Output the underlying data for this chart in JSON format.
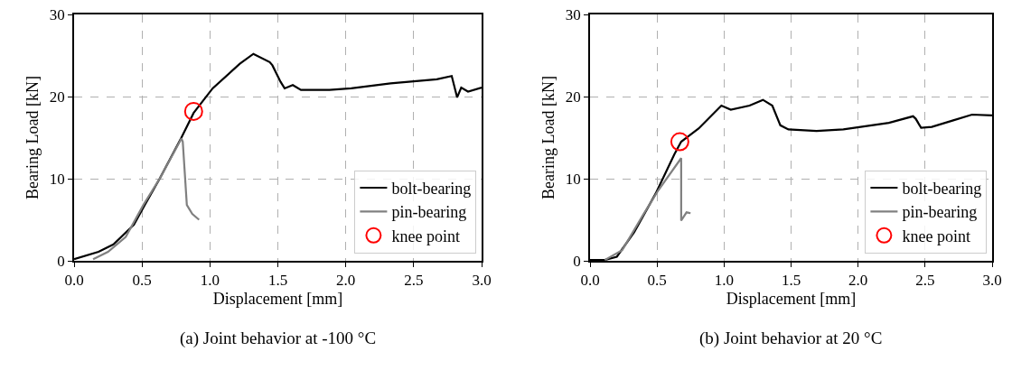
{
  "chart_data": [
    {
      "type": "line",
      "title": "(a) Joint behavior at -100 °C",
      "xlabel": "Displacement [mm]",
      "ylabel": "Bearing Load [kN]",
      "xlim": [
        0,
        3
      ],
      "ylim": [
        0,
        30
      ],
      "xticks": [
        {
          "value": 0,
          "label": "0.0"
        },
        0.5,
        {
          "value": 1,
          "label": "1.0"
        },
        1.5,
        {
          "value": 2,
          "label": "2.0"
        },
        2.5,
        {
          "value": 3,
          "label": "3.0"
        }
      ],
      "yticks": [
        0,
        10,
        20,
        30
      ],
      "grid": true,
      "legend": "bottom right",
      "line_style": "solid",
      "series": [
        {
          "name": "bolt-bearing",
          "color": "#000000",
          "x": [
            0,
            0.18,
            0.29,
            0.44,
            0.52,
            0.63,
            0.79,
            0.88,
            1.02,
            1.22,
            1.32,
            1.44,
            1.46,
            1.52,
            1.55,
            1.61,
            1.67,
            1.88,
            2.04,
            2.33,
            2.67,
            2.78,
            2.82,
            2.85,
            2.9,
            3.0
          ],
          "values": [
            0.2,
            1.1,
            2.0,
            4.4,
            6.8,
            10,
            15,
            18,
            21,
            24,
            25.2,
            24.2,
            23.8,
            21.8,
            21,
            21.4,
            20.8,
            20.8,
            21,
            21.6,
            22.1,
            22.5,
            19.9,
            21.1,
            20.6,
            21.1
          ]
        },
        {
          "name": "pin-bearing",
          "color": "#808080",
          "x": [
            0.14,
            0.25,
            0.38,
            0.51,
            0.63,
            0.79,
            0.8,
            0.83,
            0.87,
            0.92
          ],
          "values": [
            0.2,
            1.1,
            2.9,
            6.8,
            10,
            14.9,
            14.5,
            6.8,
            5.7,
            5.0
          ]
        },
        {
          "name": "knee point",
          "type": "scatter",
          "marker": "circle",
          "color": "#ff0000",
          "x": [
            0.88
          ],
          "values": [
            18.2
          ]
        }
      ]
    },
    {
      "type": "line",
      "title": "(b) Joint behavior at 20 °C",
      "xlabel": "Displacement [mm]",
      "ylabel": "Bearing Load [kN]",
      "xlim": [
        0,
        3
      ],
      "ylim": [
        0,
        30
      ],
      "xticks": [
        {
          "value": 0,
          "label": "0.0"
        },
        0.5,
        {
          "value": 1,
          "label": "1.0"
        },
        1.5,
        {
          "value": 2,
          "label": "2.0"
        },
        2.5,
        {
          "value": 3,
          "label": "3.0"
        }
      ],
      "yticks": [
        0,
        10,
        20,
        30
      ],
      "grid": true,
      "legend": "bottom right",
      "line_style": "solid",
      "series": [
        {
          "name": "bolt-bearing",
          "color": "#000000",
          "x": [
            0,
            0.11,
            0.2,
            0.33,
            0.49,
            0.63,
            0.68,
            0.81,
            0.98,
            1.05,
            1.19,
            1.29,
            1.36,
            1.42,
            1.48,
            1.69,
            1.89,
            2.23,
            2.41,
            2.43,
            2.47,
            2.55,
            2.71,
            2.85,
            3.0
          ],
          "values": [
            0.1,
            0.1,
            0.5,
            3.5,
            8.2,
            13,
            14.5,
            16.1,
            18.9,
            18.4,
            18.9,
            19.6,
            18.9,
            16.5,
            16,
            15.8,
            16.0,
            16.8,
            17.6,
            17.3,
            16.2,
            16.3,
            17.1,
            17.8,
            17.7
          ]
        },
        {
          "name": "pin-bearing",
          "color": "#808080",
          "x": [
            0.11,
            0.24,
            0.4,
            0.51,
            0.68,
            0.68,
            0.72,
            0.75
          ],
          "values": [
            0.1,
            1.3,
            5.7,
            8.6,
            12.5,
            4.9,
            5.9,
            5.8
          ]
        },
        {
          "name": "knee point",
          "type": "scatter",
          "marker": "circle",
          "color": "#ff0000",
          "x": [
            0.67
          ],
          "values": [
            14.5
          ]
        }
      ]
    }
  ]
}
